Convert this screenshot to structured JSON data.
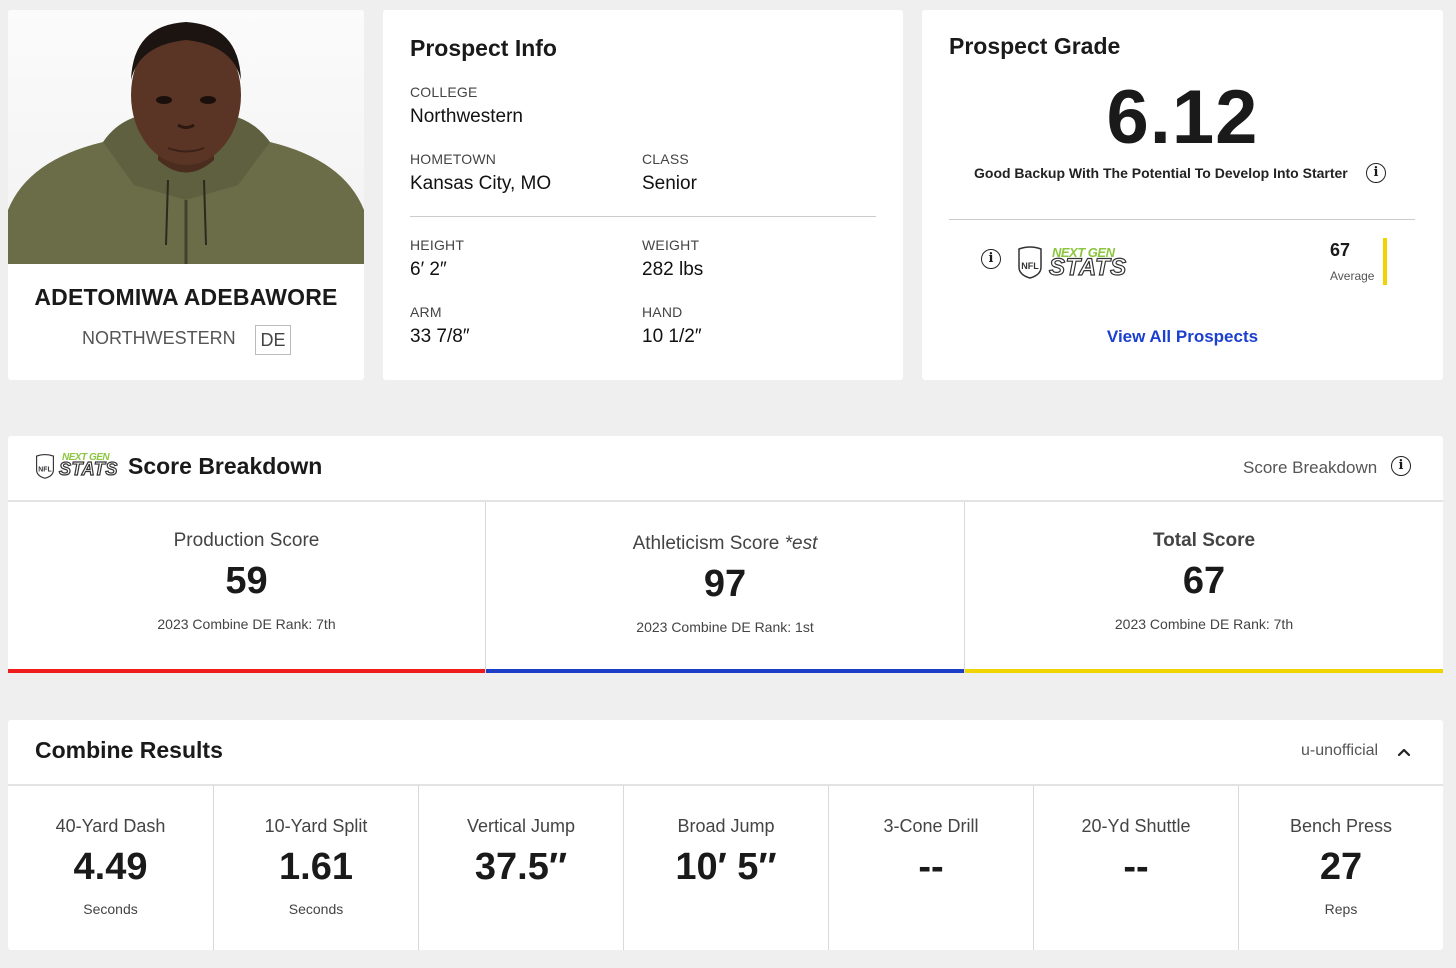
{
  "player": {
    "name": "ADETOMIWA ADEBAWORE",
    "college": "NORTHWESTERN",
    "position": "DE"
  },
  "prospect_info": {
    "title": "Prospect Info",
    "college_label": "COLLEGE",
    "college_value": "Northwestern",
    "hometown_label": "HOMETOWN",
    "hometown_value": "Kansas City, MO",
    "class_label": "CLASS",
    "class_value": "Senior",
    "height_label": "HEIGHT",
    "height_value": "6′ 2″",
    "weight_label": "WEIGHT",
    "weight_value": "282 lbs",
    "arm_label": "ARM",
    "arm_value": "33 7/8″",
    "hand_label": "HAND",
    "hand_value": "10 1/2″"
  },
  "prospect_grade": {
    "title": "Prospect Grade",
    "grade": "6.12",
    "description": "Good Backup With The Potential To Develop Into Starter",
    "ngs_logo_next": "NEXT GEN",
    "ngs_logo_stats": "STATS",
    "ngs_score": "67",
    "ngs_score_label": "Average",
    "ngs_bar_color": "#f0d400",
    "view_all_label": "View All Prospects"
  },
  "score_breakdown": {
    "title": "Score Breakdown",
    "right_label": "Score Breakdown",
    "scores": [
      {
        "label": "Production Score",
        "value": "59",
        "rank": "2023 Combine DE Rank: 7th",
        "color": "#ee1c1c"
      },
      {
        "label": "Athleticism Score",
        "label_suffix": "*est",
        "value": "97",
        "rank": "2023 Combine DE Rank: 1st",
        "color": "#1d3fc8"
      },
      {
        "label": "Total Score",
        "value": "67",
        "rank": "2023 Combine DE Rank: 7th",
        "color": "#f0d400"
      }
    ]
  },
  "combine": {
    "title": "Combine Results",
    "toggle_label": "u-unofficial",
    "toggle_icon": "chevron-up-icon",
    "drills": [
      {
        "label": "40-Yard Dash",
        "value": "4.49",
        "unit": "Seconds"
      },
      {
        "label": "10-Yard Split",
        "value": "1.61",
        "unit": "Seconds"
      },
      {
        "label": "Vertical Jump",
        "value": "37.5″",
        "unit": ""
      },
      {
        "label": "Broad Jump",
        "value": "10′ 5″",
        "unit": ""
      },
      {
        "label": "3-Cone Drill",
        "value": "--",
        "unit": ""
      },
      {
        "label": "20-Yd Shuttle",
        "value": "--",
        "unit": ""
      },
      {
        "label": "Bench Press",
        "value": "27",
        "unit": "Reps"
      }
    ]
  },
  "icons": {
    "info": "i",
    "nfl_shield": "NFL"
  }
}
